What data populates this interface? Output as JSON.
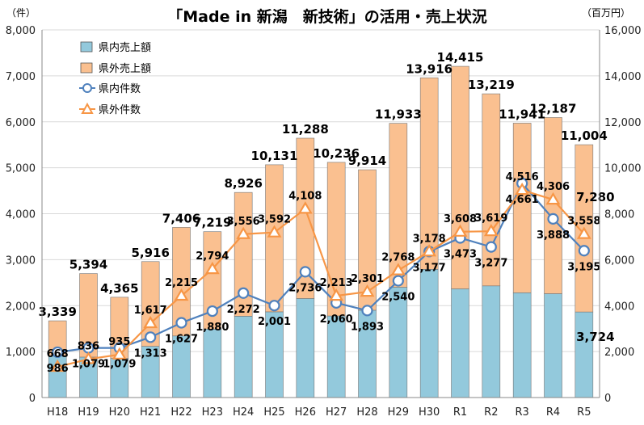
{
  "chart_data": {
    "type": "bar",
    "title": "「Made in 新潟　新技術」の活用・売上状況",
    "left_axis_unit": "（件）",
    "right_axis_unit": "（百万円）",
    "categories": [
      "H18",
      "H19",
      "H20",
      "H21",
      "H22",
      "H23",
      "H24",
      "H25",
      "H26",
      "H27",
      "H28",
      "H29",
      "H30",
      "R1",
      "R2",
      "R3",
      "R4",
      "R5"
    ],
    "left_ylim": [
      0,
      8000
    ],
    "left_ticks": [
      "0",
      "1,000",
      "2,000",
      "3,000",
      "4,000",
      "5,000",
      "6,000",
      "7,000",
      "8,000"
    ],
    "right_ylim": [
      0,
      16000
    ],
    "right_ticks": [
      "0",
      "2,000",
      "4,000",
      "6,000",
      "8,000",
      "10,000",
      "12,000",
      "14,000",
      "16,000"
    ],
    "grid": true,
    "legend_position": "top-left",
    "bar_series": [
      {
        "name": "県内売上額",
        "color": "#93c9dc",
        "axis": "right",
        "values": [
          1830,
          1760,
          1700,
          2230,
          2680,
          2980,
          3540,
          3730,
          4310,
          3550,
          3800,
          4800,
          5580,
          4730,
          4860,
          4560,
          4520,
          3724
        ]
      },
      {
        "name": "県外売上額",
        "color": "#fac090",
        "axis": "right",
        "values": [
          1509,
          3634,
          2665,
          3686,
          4726,
          4239,
          5386,
          6401,
          6978,
          6686,
          6114,
          7133,
          8336,
          9685,
          8359,
          7381,
          7667,
          7280
        ]
      }
    ],
    "totals": [
      "3,339",
      "5,394",
      "4,365",
      "5,916",
      "7,406",
      "7,219",
      "8,926",
      "10,131",
      "11,288",
      "10,236",
      "9,914",
      "11,933",
      "13,916",
      "14,415",
      "13,219",
      "11,941",
      "12,187",
      "11,004"
    ],
    "line_series": [
      {
        "name": "県内件数",
        "color": "#4f81bd",
        "axis": "left",
        "marker": "circle",
        "values": [
          986,
          1079,
          1079,
          1313,
          1627,
          1880,
          2272,
          2001,
          2736,
          2060,
          1893,
          2540,
          3177,
          3473,
          3277,
          4661,
          3888,
          3195
        ]
      },
      {
        "name": "県外件数",
        "color": "#f79646",
        "axis": "left",
        "marker": "triangle",
        "values": [
          668,
          836,
          935,
          1617,
          2215,
          2794,
          3556,
          3592,
          4108,
          2213,
          2301,
          2768,
          3178,
          3608,
          3619,
          4516,
          4306,
          3558
        ]
      }
    ],
    "point_labels": [
      {
        "text": "986",
        "series": 0,
        "index": 0
      },
      {
        "text": "1,079",
        "series": 0,
        "index": 1
      },
      {
        "text": "1,079",
        "series": 0,
        "index": 2
      },
      {
        "text": "1,313",
        "series": 0,
        "index": 3
      },
      {
        "text": "1,627",
        "series": 0,
        "index": 4
      },
      {
        "text": "1,880",
        "series": 0,
        "index": 5
      },
      {
        "text": "2,272",
        "series": 0,
        "index": 6
      },
      {
        "text": "2,001",
        "series": 0,
        "index": 7
      },
      {
        "text": "2,736",
        "series": 0,
        "index": 8
      },
      {
        "text": "2,060",
        "series": 0,
        "index": 9
      },
      {
        "text": "1,893",
        "series": 0,
        "index": 10
      },
      {
        "text": "2,540",
        "series": 0,
        "index": 11
      },
      {
        "text": "3,177",
        "series": 0,
        "index": 12
      },
      {
        "text": "3,473",
        "series": 0,
        "index": 13
      },
      {
        "text": "3,277",
        "series": 0,
        "index": 14
      },
      {
        "text": "4,661",
        "series": 0,
        "index": 15
      },
      {
        "text": "3,888",
        "series": 0,
        "index": 16
      },
      {
        "text": "3,195",
        "series": 0,
        "index": 17
      },
      {
        "text": "668",
        "series": 1,
        "index": 0
      },
      {
        "text": "836",
        "series": 1,
        "index": 1
      },
      {
        "text": "935",
        "series": 1,
        "index": 2
      },
      {
        "text": "1,617",
        "series": 1,
        "index": 3
      },
      {
        "text": "2,215",
        "series": 1,
        "index": 4
      },
      {
        "text": "2,794",
        "series": 1,
        "index": 5
      },
      {
        "text": "3,556",
        "series": 1,
        "index": 6
      },
      {
        "text": "3,592",
        "series": 1,
        "index": 7
      },
      {
        "text": "4,108",
        "series": 1,
        "index": 8
      },
      {
        "text": "2,213",
        "series": 1,
        "index": 9
      },
      {
        "text": "2,301",
        "series": 1,
        "index": 10
      },
      {
        "text": "2,768",
        "series": 1,
        "index": 11
      },
      {
        "text": "3,178",
        "series": 1,
        "index": 12
      },
      {
        "text": "3,608",
        "series": 1,
        "index": 13
      },
      {
        "text": "3,619",
        "series": 1,
        "index": 14
      },
      {
        "text": "4,516",
        "series": 1,
        "index": 15
      },
      {
        "text": "4,306",
        "series": 1,
        "index": 16
      },
      {
        "text": "3,558",
        "series": 1,
        "index": 17
      }
    ],
    "bar_labels": [
      {
        "text": "7,280",
        "series": 1,
        "index": 17
      },
      {
        "text": "3,724",
        "series": 0,
        "index": 17
      }
    ]
  }
}
